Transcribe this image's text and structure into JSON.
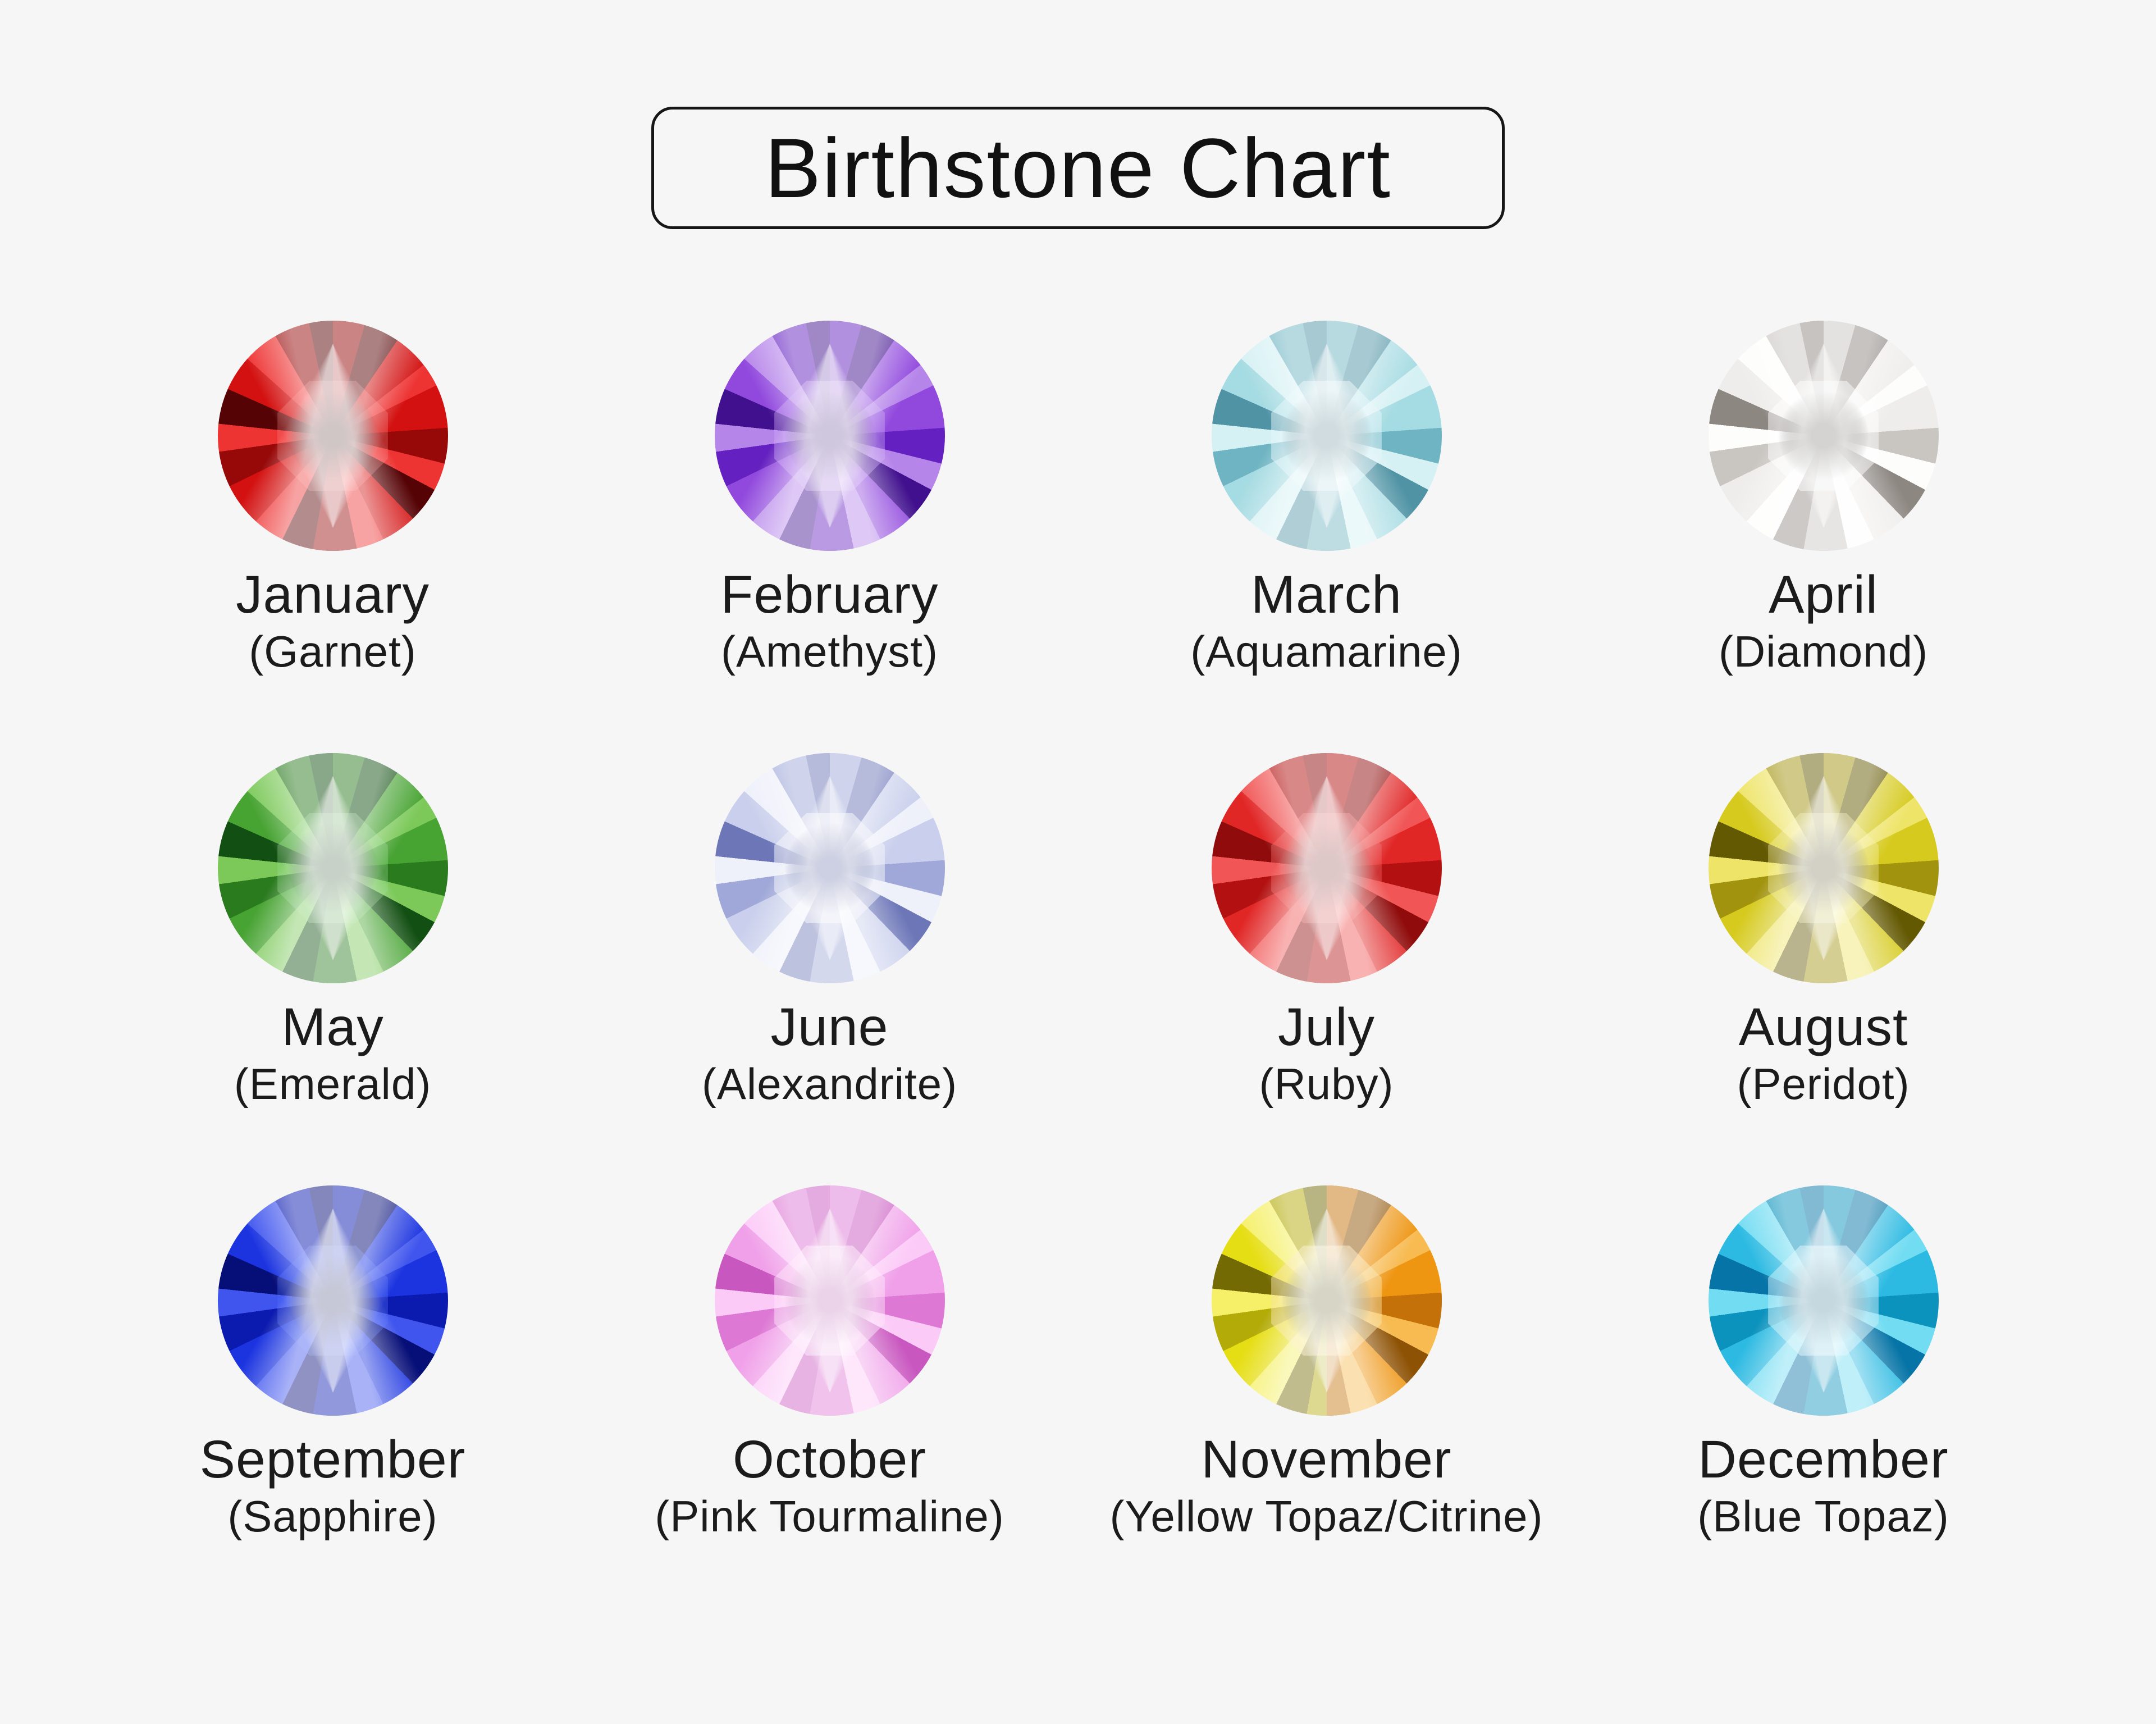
{
  "page": {
    "background_color": "#f6f6f6",
    "text_color": "#1b1b1b",
    "title_border_color": "#161616"
  },
  "title": "Birthstone Chart",
  "months": [
    {
      "month": "January",
      "stone": "(Garnet)",
      "palette": {
        "c1": "#d31111",
        "c2": "#970808",
        "c3": "#ee3333",
        "c4": "#560305",
        "dk": "#330203",
        "tb": "rgba(255,140,140,0.28)"
      }
    },
    {
      "month": "February",
      "stone": "(Amethyst)",
      "palette": {
        "c1": "#9048dd",
        "c2": "#6420c0",
        "c3": "#b685ea",
        "c4": "#41108e",
        "dk": "#2a0668",
        "tb": "rgba(205,170,245,0.40)"
      }
    },
    {
      "month": "March",
      "stone": "(Aquamarine)",
      "palette": {
        "c1": "#a5dbe2",
        "c2": "#6fb4c2",
        "c3": "#d6f1f4",
        "c4": "#4f93a4",
        "dk": "#2d6472",
        "tb": "rgba(225,246,249,0.50)"
      }
    },
    {
      "month": "April",
      "stone": "(Diamond)",
      "palette": {
        "c1": "#efedeb",
        "c2": "#c9c5c1",
        "c3": "#fdfdfc",
        "c4": "#8d8782",
        "dk": "#3f3a36",
        "tb": "rgba(255,255,255,0.50)"
      }
    },
    {
      "month": "May",
      "stone": "(Emerald)",
      "palette": {
        "c1": "#47a332",
        "c2": "#2a7a1e",
        "c3": "#7cc95a",
        "c4": "#124f12",
        "dk": "#06350a",
        "tb": "rgba(150,215,140,0.35)"
      }
    },
    {
      "month": "June",
      "stone": "(Alexandrite)",
      "palette": {
        "c1": "#c9cfec",
        "c2": "#9fa8d8",
        "c3": "#eef0fa",
        "c4": "#6d77b8",
        "dk": "#23307e",
        "tb": "rgba(240,242,250,0.55)"
      }
    },
    {
      "month": "July",
      "stone": "(Ruby)",
      "palette": {
        "c1": "#e12626",
        "c2": "#b31111",
        "c3": "#f15555",
        "c4": "#900b0b",
        "dk": "#6b0606",
        "tb": "rgba(240,90,90,0.45)"
      }
    },
    {
      "month": "August",
      "stone": "(Peridot)",
      "palette": {
        "c1": "#d6ca1e",
        "c2": "#a1930e",
        "c3": "#eee468",
        "c4": "#645903",
        "dk": "#3a3202",
        "tb": "rgba(245,238,150,0.40)"
      }
    },
    {
      "month": "September",
      "stone": "(Sapphire)",
      "palette": {
        "c1": "#1b34e0",
        "c2": "#0b1bb0",
        "c3": "#4055ee",
        "c4": "#060e78",
        "dk": "#03094e",
        "tb": "rgba(80,110,245,0.35)"
      }
    },
    {
      "month": "October",
      "stone": "(Pink Tourmaline)",
      "palette": {
        "c1": "#f0a0e9",
        "c2": "#dd79d4",
        "c3": "#fccaf7",
        "c4": "#c957c0",
        "dk": "#a63f9e",
        "tb": "rgba(253,225,250,0.50)"
      }
    },
    {
      "month": "November",
      "stone": "(Yellow Topaz/Citrine)",
      "palette": {
        "c1": "#e6de14",
        "c2": "#b3ab08",
        "c3": "#f5f068",
        "c4": "#736a04",
        "dk": "#4a4403",
        "tb": "rgba(248,226,160,0.50)"
      },
      "palette2": {
        "c1": "#ee9512",
        "c2": "#c4710a",
        "c3": "#f7bb52",
        "c4": "#8e5205",
        "dk": "#5f3603"
      }
    },
    {
      "month": "December",
      "stone": "(Blue Topaz)",
      "palette": {
        "c1": "#2cbae2",
        "c2": "#0b93bd",
        "c3": "#72dcf2",
        "c4": "#0674a6",
        "dk": "#045372",
        "tb": "rgba(190,235,248,0.55)"
      }
    }
  ]
}
